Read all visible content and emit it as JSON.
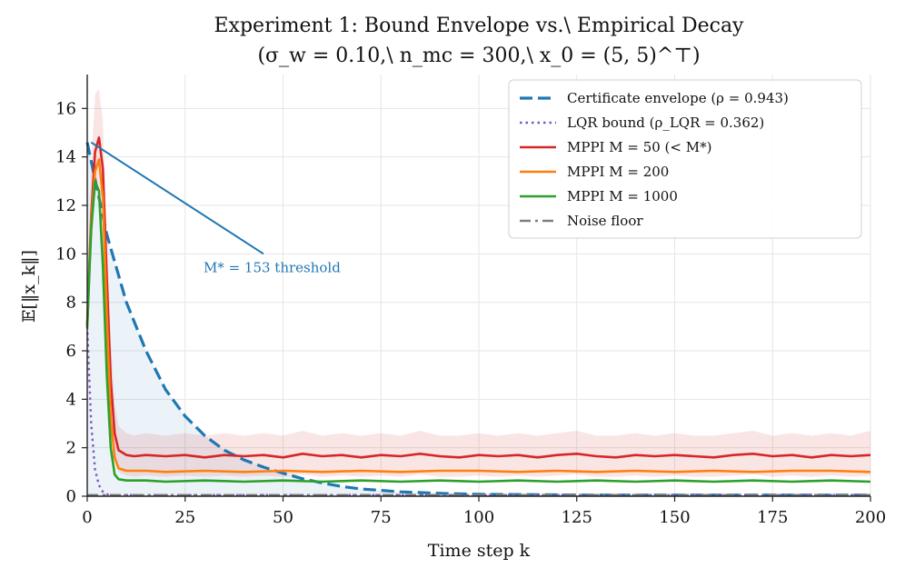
{
  "chart_data": {
    "type": "line",
    "title": "Experiment 1: Bound Envelope vs.\\ Empirical Decay",
    "subtitle": "(σ_w = 0.10,\\ n_mc = 300,\\ x_0 = (5, 5)^⊤)",
    "xlabel": "Time step k",
    "ylabel": "𝔼[‖x_k‖]",
    "xlim": [
      0,
      200
    ],
    "ylim": [
      0,
      17.4
    ],
    "x_ticks": [
      0,
      25,
      50,
      75,
      100,
      125,
      150,
      175,
      200
    ],
    "y_ticks": [
      0,
      2,
      4,
      6,
      8,
      10,
      12,
      14,
      16
    ],
    "grid": true,
    "legend_position": "top-right",
    "annotation": {
      "text": "M* = 153 threshold",
      "arrow_from": [
        45,
        10.0
      ],
      "arrow_to": [
        1,
        14.6
      ]
    },
    "series": [
      {
        "name": "Certificate envelope (ρ = 0.943)",
        "color": "#1f77b4",
        "style": "dashed",
        "x": [
          0,
          5,
          10,
          15,
          20,
          25,
          30,
          35,
          40,
          45,
          50,
          55,
          60,
          65,
          70,
          80,
          90,
          100,
          125,
          150,
          175,
          200
        ],
        "y": [
          14.6,
          10.8,
          8.0,
          6.0,
          4.4,
          3.3,
          2.5,
          1.9,
          1.5,
          1.2,
          0.95,
          0.72,
          0.55,
          0.4,
          0.3,
          0.18,
          0.12,
          0.08,
          0.05,
          0.05,
          0.05,
          0.05
        ],
        "fill_to_zero": true
      },
      {
        "name": "LQR bound (ρ_LQR = 0.362)",
        "color": "#7e57c2",
        "style": "dotted",
        "x": [
          0,
          1,
          2,
          3,
          4,
          5,
          6,
          8,
          10,
          200
        ],
        "y": [
          7.0,
          3.0,
          1.1,
          0.45,
          0.18,
          0.08,
          0.05,
          0.05,
          0.05,
          0.05
        ]
      },
      {
        "name": "MPPI M = 50 (< M*)",
        "color": "#d62728",
        "style": "solid",
        "x": [
          0,
          1,
          2,
          3,
          4,
          5,
          6,
          7,
          8,
          10,
          12,
          15,
          20,
          25,
          30,
          35,
          40,
          45,
          50,
          55,
          60,
          65,
          70,
          75,
          80,
          85,
          90,
          95,
          100,
          105,
          110,
          115,
          120,
          125,
          130,
          135,
          140,
          145,
          150,
          155,
          160,
          165,
          170,
          175,
          180,
          185,
          190,
          195,
          200
        ],
        "y": [
          7.1,
          11.5,
          14.2,
          14.8,
          13.5,
          9.0,
          4.8,
          2.6,
          1.9,
          1.7,
          1.65,
          1.7,
          1.65,
          1.7,
          1.6,
          1.7,
          1.65,
          1.7,
          1.6,
          1.75,
          1.65,
          1.7,
          1.6,
          1.7,
          1.65,
          1.75,
          1.65,
          1.6,
          1.7,
          1.65,
          1.7,
          1.6,
          1.7,
          1.75,
          1.65,
          1.6,
          1.7,
          1.65,
          1.7,
          1.65,
          1.6,
          1.7,
          1.75,
          1.65,
          1.7,
          1.6,
          1.7,
          1.65,
          1.7
        ],
        "band": {
          "upper": [
            8.5,
            13.5,
            16.6,
            16.8,
            15.5,
            10.8,
            6.5,
            3.8,
            2.9,
            2.6,
            2.5,
            2.6,
            2.5,
            2.6,
            2.5,
            2.6,
            2.5,
            2.6,
            2.5,
            2.7,
            2.5,
            2.6,
            2.5,
            2.6,
            2.5,
            2.7,
            2.5,
            2.5,
            2.6,
            2.5,
            2.6,
            2.5,
            2.6,
            2.7,
            2.5,
            2.5,
            2.6,
            2.5,
            2.6,
            2.5,
            2.5,
            2.6,
            2.7,
            2.5,
            2.6,
            2.5,
            2.6,
            2.5,
            2.7
          ],
          "lower": [
            5.8,
            9.8,
            12.3,
            12.9,
            11.6,
            7.4,
            3.4,
            1.6,
            1.0,
            0.85,
            0.8,
            0.85,
            0.8,
            0.85,
            0.8,
            0.85,
            0.8,
            0.85,
            0.8,
            0.9,
            0.8,
            0.85,
            0.8,
            0.85,
            0.8,
            0.9,
            0.8,
            0.8,
            0.85,
            0.8,
            0.85,
            0.8,
            0.85,
            0.9,
            0.8,
            0.8,
            0.85,
            0.8,
            0.85,
            0.8,
            0.8,
            0.85,
            0.9,
            0.8,
            0.85,
            0.8,
            0.85,
            0.8,
            0.85
          ]
        }
      },
      {
        "name": "MPPI M = 200",
        "color": "#ff7f0e",
        "style": "solid",
        "x": [
          0,
          1,
          2,
          3,
          4,
          5,
          6,
          7,
          8,
          10,
          15,
          20,
          30,
          40,
          50,
          60,
          70,
          80,
          90,
          100,
          110,
          120,
          130,
          140,
          150,
          160,
          170,
          180,
          190,
          200
        ],
        "y": [
          7.0,
          11.3,
          13.4,
          13.9,
          12.3,
          7.5,
          3.2,
          1.6,
          1.15,
          1.05,
          1.05,
          1.0,
          1.05,
          1.0,
          1.05,
          1.0,
          1.05,
          1.0,
          1.05,
          1.05,
          1.0,
          1.05,
          1.0,
          1.05,
          1.0,
          1.05,
          1.0,
          1.05,
          1.05,
          1.0
        ]
      },
      {
        "name": "MPPI M = 1000",
        "color": "#2ca02c",
        "style": "solid",
        "x": [
          0,
          1,
          2,
          3,
          4,
          5,
          6,
          7,
          8,
          10,
          15,
          20,
          30,
          40,
          50,
          60,
          70,
          80,
          90,
          100,
          110,
          120,
          130,
          140,
          150,
          160,
          170,
          180,
          190,
          200
        ],
        "y": [
          7.0,
          11.0,
          13.0,
          12.6,
          9.5,
          5.0,
          2.0,
          0.9,
          0.7,
          0.65,
          0.65,
          0.6,
          0.65,
          0.6,
          0.65,
          0.6,
          0.65,
          0.6,
          0.65,
          0.6,
          0.65,
          0.6,
          0.65,
          0.6,
          0.65,
          0.6,
          0.65,
          0.6,
          0.65,
          0.6
        ]
      },
      {
        "name": "Noise floor",
        "color": "#7f7f7f",
        "style": "dashdot",
        "x": [
          0,
          200
        ],
        "y": [
          0.05,
          0.05
        ]
      }
    ]
  }
}
